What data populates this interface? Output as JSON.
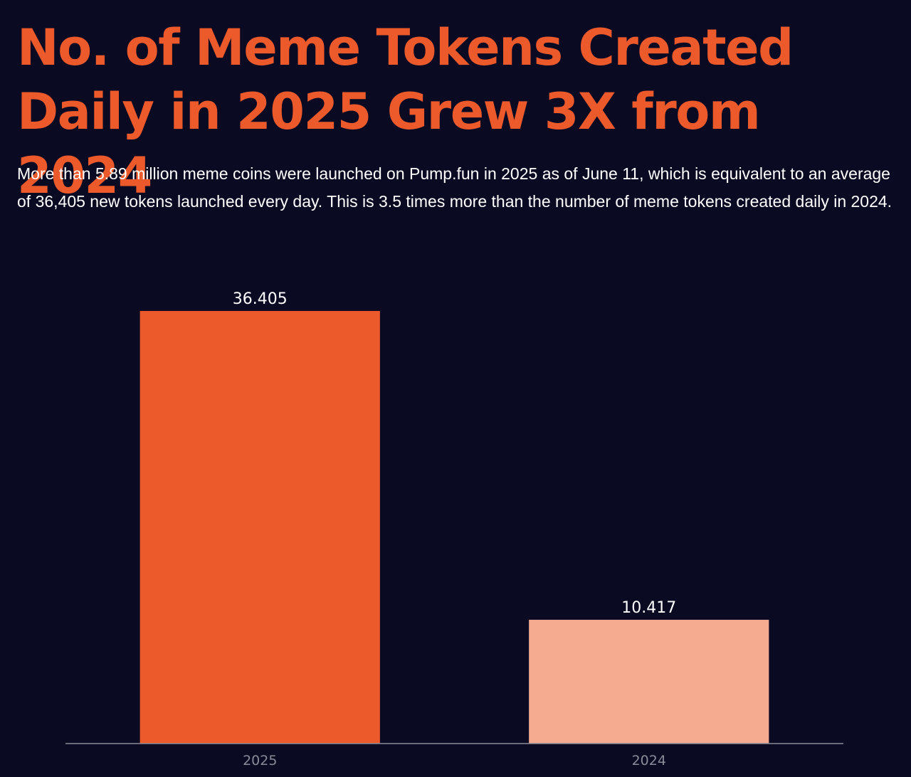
{
  "header": {
    "title": "No. of Meme Tokens Created Daily in 2025 Grew 3X from 2024",
    "description": "More than 5.89 million meme coins were launched on Pump.fun in 2025 as of June 11, which is equivalent to an average of 36,405 new tokens launched every day. This is 3.5 times more than the number of meme tokens created daily in 2024."
  },
  "chart_data": {
    "type": "bar",
    "categories": [
      "2025",
      "2024"
    ],
    "values": [
      36405,
      10417
    ],
    "value_labels": [
      "36.405",
      "10.417"
    ],
    "colors": [
      "#ec5a2b",
      "#f4ab90"
    ],
    "ylim": [
      0,
      40000
    ],
    "grid": false,
    "legend": "none"
  }
}
